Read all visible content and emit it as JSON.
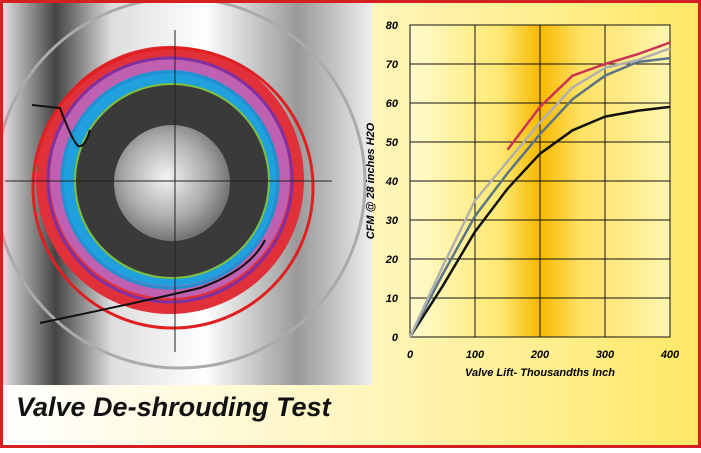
{
  "chart_data": {
    "type": "line",
    "title": "Valve De-shrouding Test",
    "x_label": "Valve Lift- Thousandths Inch",
    "y_label": "CFM @ 28 inches H2O",
    "x": [
      0,
      50,
      100,
      150,
      200,
      250,
      300,
      350,
      400
    ],
    "series": [
      {
        "color": "#111111",
        "values": [
          0,
          13,
          27,
          38,
          47,
          53,
          56.5,
          58,
          59
        ]
      },
      {
        "color": "#5a7585",
        "values": [
          0,
          16,
          31,
          42,
          52,
          61,
          67,
          70.5,
          71.5
        ]
      },
      {
        "color": "#b0b0b0",
        "values": [
          0,
          18,
          35,
          45,
          55,
          64,
          69,
          71,
          74
        ]
      },
      {
        "color": "#cc3355",
        "values": [
          null,
          null,
          null,
          48,
          59,
          67,
          70,
          72.5,
          75.5
        ]
      }
    ],
    "xlim": [
      0,
      400
    ],
    "xticks": [
      0,
      100,
      200,
      300,
      400
    ],
    "ylim": [
      0,
      80
    ],
    "yticks": [
      0,
      10,
      20,
      30,
      40,
      50,
      60,
      70,
      80
    ],
    "grid": true
  }
}
